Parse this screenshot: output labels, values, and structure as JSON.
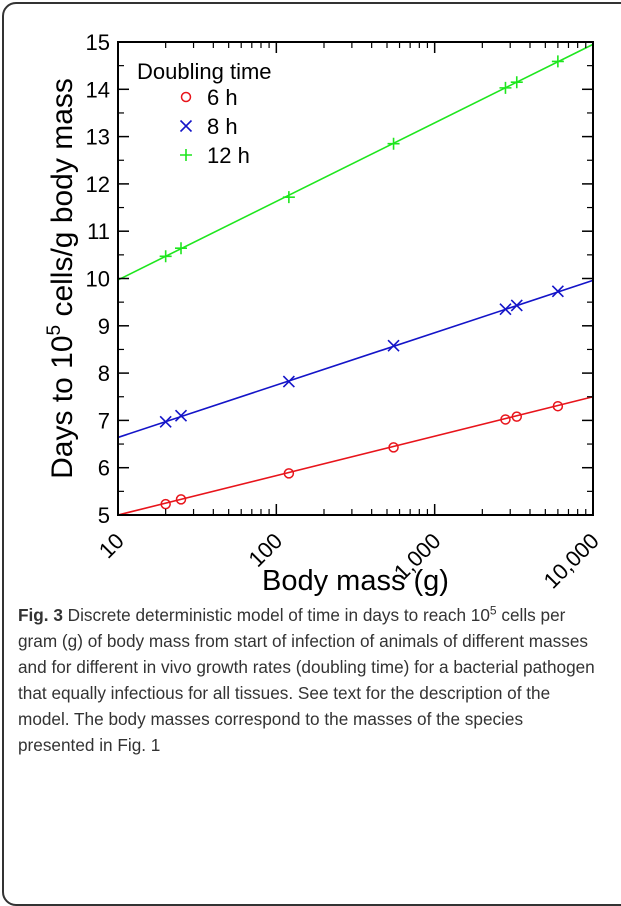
{
  "chart_data": {
    "type": "line",
    "xlabel": "Body mass (g)",
    "ylabel": "Days to 10^5  cells/g body mass",
    "ylabel_parts": {
      "prefix": "Days to 10",
      "superscript": "5",
      "suffix": "  cells/g body mass"
    },
    "x_scale": "log",
    "xlim": [
      10,
      10000
    ],
    "ylim": [
      5,
      15
    ],
    "x_ticks": [
      10,
      100,
      1000,
      10000
    ],
    "x_tick_labels": [
      "10",
      "100",
      "1,000",
      "10,000"
    ],
    "y_ticks": [
      5,
      6,
      7,
      8,
      9,
      10,
      11,
      12,
      13,
      14,
      15
    ],
    "y_tick_labels": [
      "5",
      "6",
      "7",
      "8",
      "9",
      "10",
      "11",
      "12",
      "13",
      "14",
      "15"
    ],
    "grid": false,
    "legend_title": "Doubling time",
    "legend_position": "top-left",
    "series": [
      {
        "name": "6 h",
        "color": "#e8141b",
        "marker": "circle",
        "line": [
          [
            10,
            5.0
          ],
          [
            10000,
            7.5
          ]
        ],
        "x": [
          20,
          25,
          120,
          550,
          2800,
          3300,
          6000
        ],
        "y": [
          5.23,
          5.33,
          5.88,
          6.43,
          7.02,
          7.08,
          7.3
        ]
      },
      {
        "name": "8 h",
        "color": "#1414c8",
        "marker": "x",
        "line": [
          [
            10,
            6.64
          ],
          [
            10000,
            9.96
          ]
        ],
        "x": [
          20,
          25,
          120,
          550,
          2800,
          3300,
          6000
        ],
        "y": [
          6.97,
          7.1,
          7.82,
          8.58,
          9.35,
          9.43,
          9.73
        ]
      },
      {
        "name": "12 h",
        "color": "#1ee61e",
        "marker": "plus",
        "line": [
          [
            10,
            9.97
          ],
          [
            10000,
            14.95
          ]
        ],
        "x": [
          20,
          25,
          120,
          550,
          2800,
          3300,
          6000
        ],
        "y": [
          10.47,
          10.64,
          11.72,
          12.85,
          14.03,
          14.15,
          14.59
        ]
      }
    ]
  },
  "caption": {
    "label": "Fig. 3",
    "text_1": " Discrete deterministic model of time in days to reach 10",
    "superscript": "5",
    "text_2": " cells per gram (g) of body mass from start of infection of animals of different masses and for different in vivo growth rates (doubling time) for a bacterial pathogen that equally infectious for all tissues. See text for the description of the model. The body masses correspond to the masses of the species presented in Fig. 1"
  }
}
